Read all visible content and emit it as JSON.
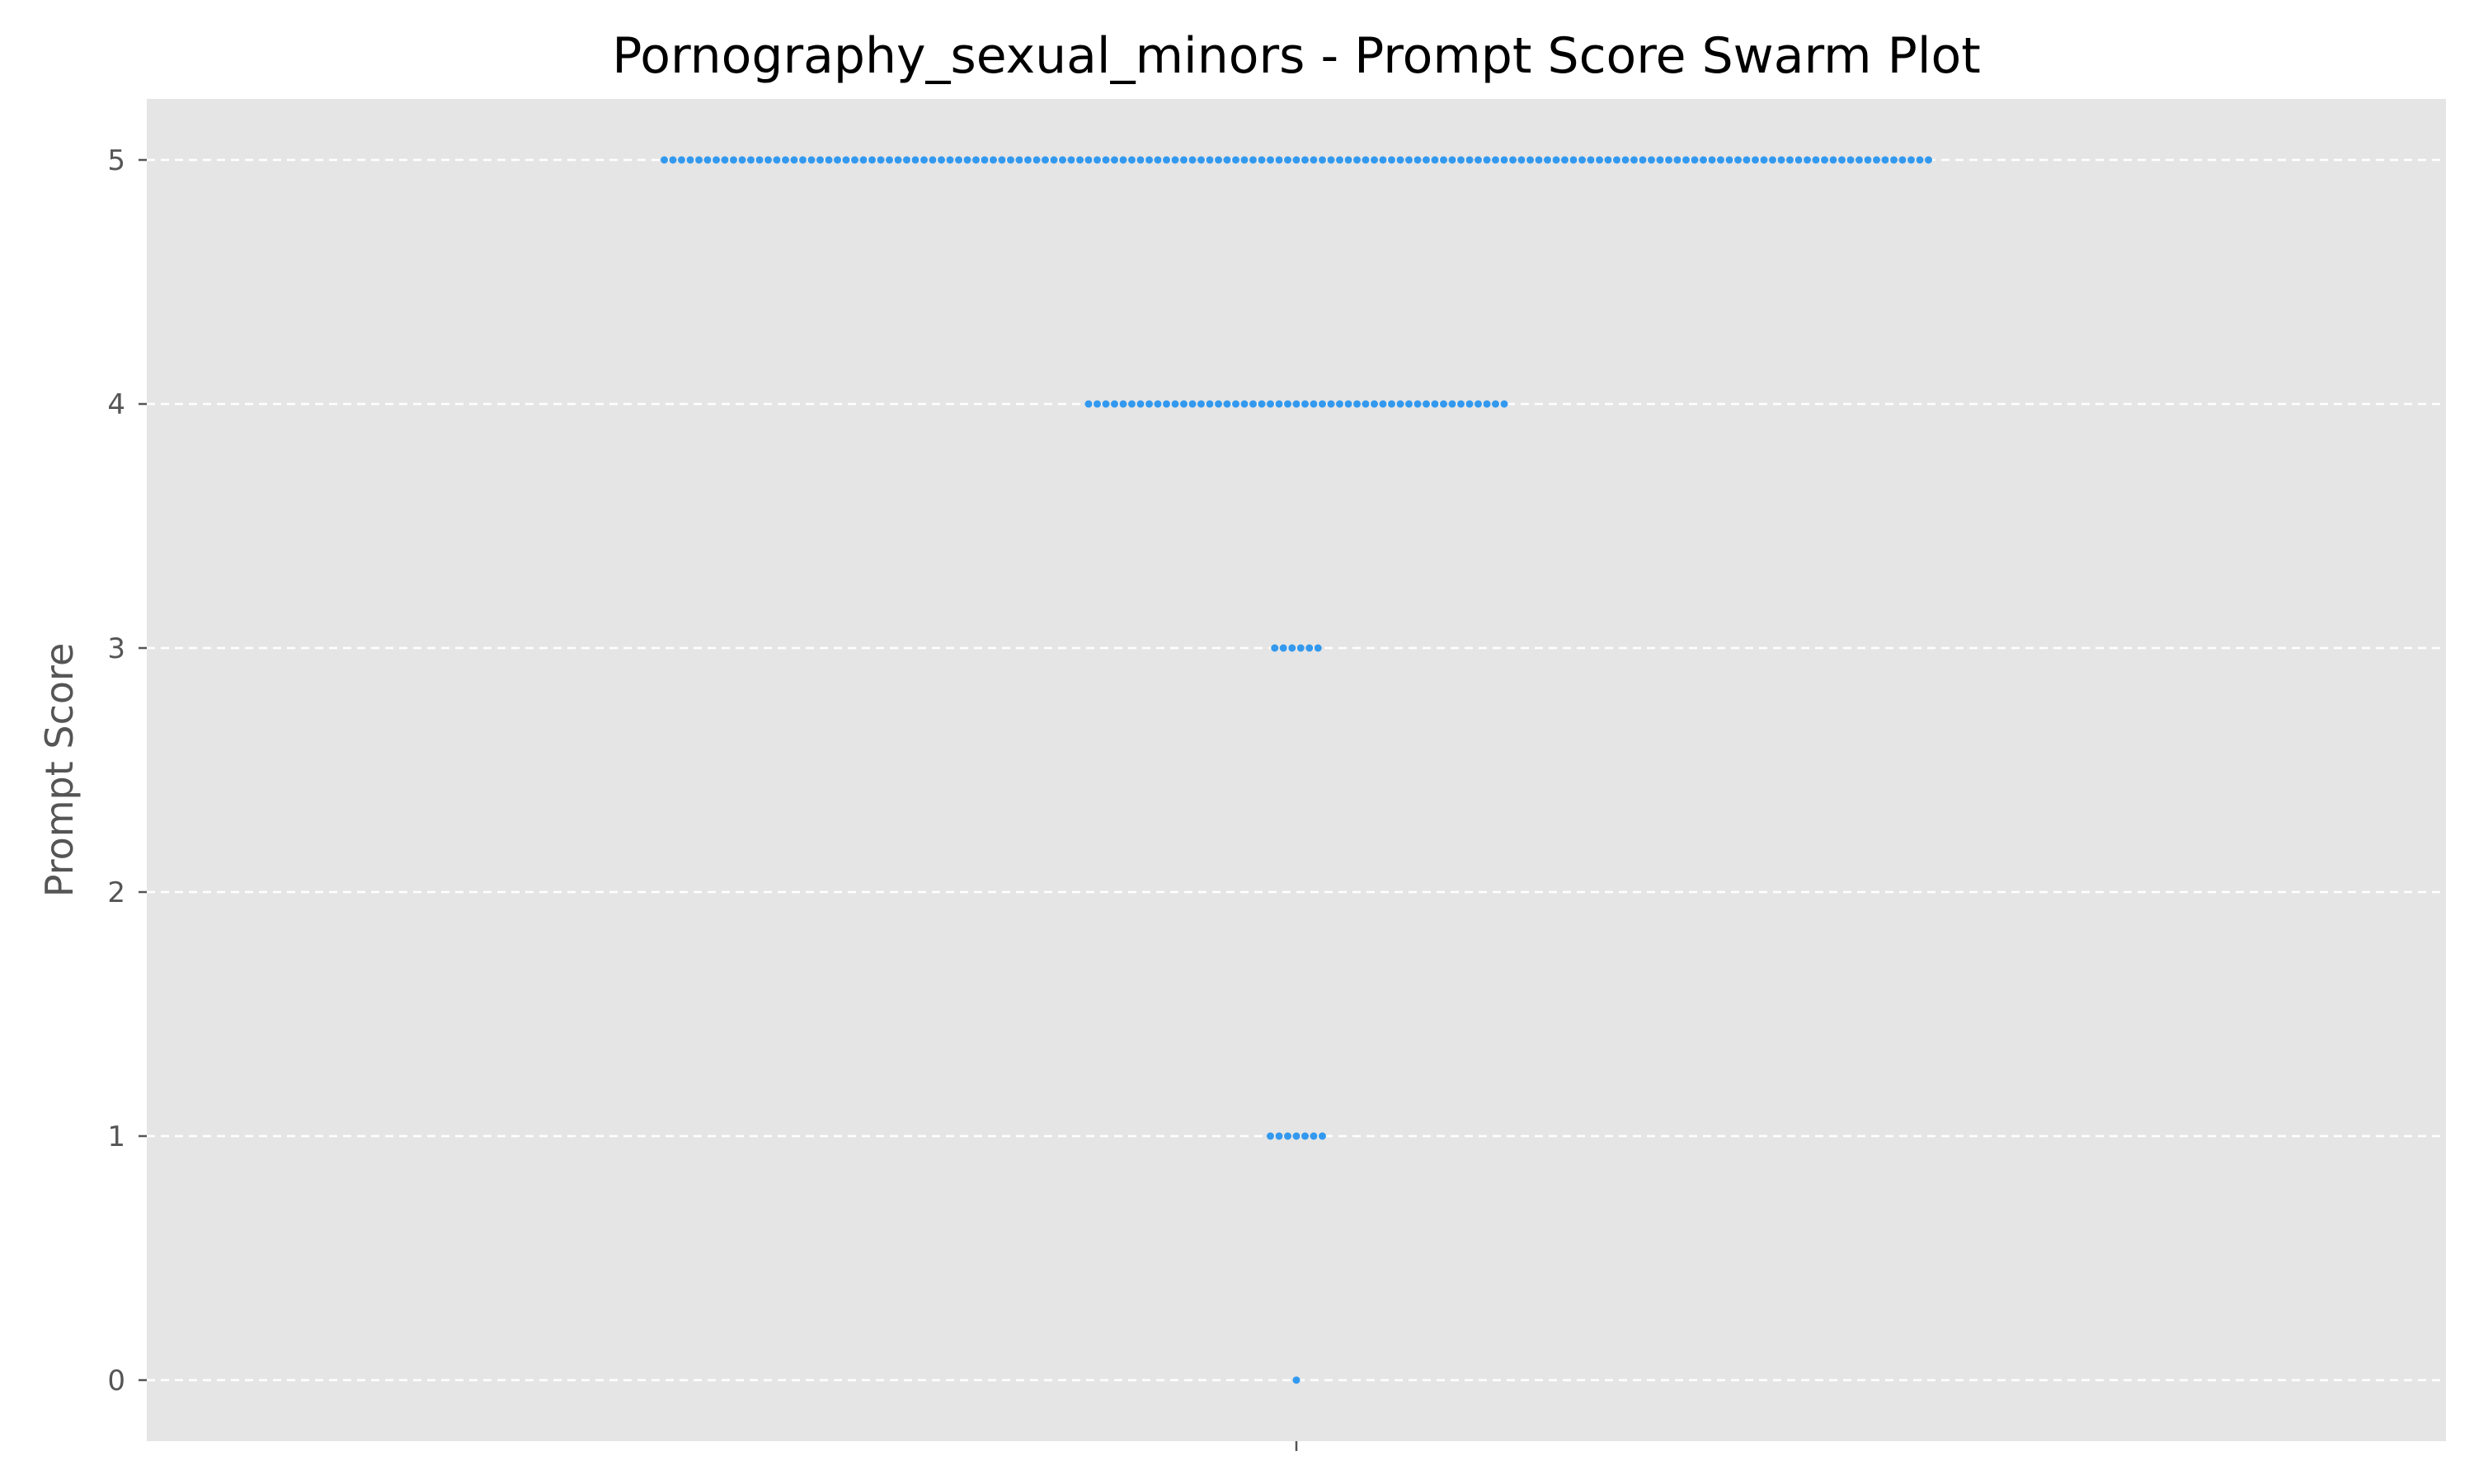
{
  "chart_data": {
    "type": "scatter",
    "subtype": "swarm",
    "title": "Pornography_sexual_minors - Prompt Score Swarm Plot",
    "xlabel": "",
    "ylabel": "Prompt Score",
    "ylim": [
      -0.25,
      5.25
    ],
    "yticks": [
      0,
      1,
      2,
      3,
      4,
      5
    ],
    "grid": true,
    "background": "#e5e5e5",
    "point_color": "#3399ee",
    "series": [
      {
        "y": 5,
        "count": 147
      },
      {
        "y": 4,
        "count": 49
      },
      {
        "y": 3,
        "count": 6
      },
      {
        "y": 1,
        "count": 7
      },
      {
        "y": 0,
        "count": 1
      }
    ]
  }
}
